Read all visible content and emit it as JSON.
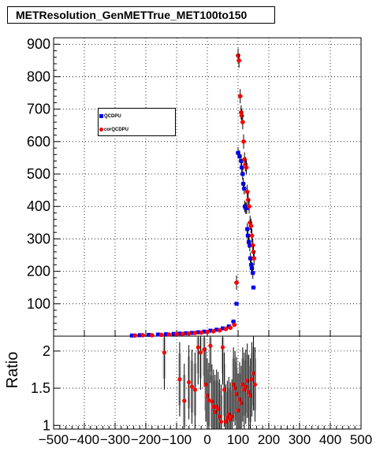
{
  "title": "METResolution_GenMETTrue_MET100to150",
  "legend": {
    "entries": [
      {
        "label": "QCDPU",
        "color": "#0000ff",
        "marker": "square"
      },
      {
        "label": "corQCDPU",
        "color": "#ff0000",
        "marker": "circle"
      }
    ]
  },
  "chart_data": [
    {
      "type": "scatter",
      "panel": "top",
      "xlim": [
        -500,
        500
      ],
      "ylim": [
        0,
        920
      ],
      "yticks": [
        "100",
        "200",
        "300",
        "400",
        "500",
        "600",
        "700",
        "800",
        "900"
      ],
      "grid": true,
      "series": [
        {
          "name": "QCDPU",
          "color": "#0000ff",
          "marker": "square",
          "points": [
            [
              -245,
              2
            ],
            [
              -220,
              3
            ],
            [
              -190,
              4
            ],
            [
              -160,
              5
            ],
            [
              -135,
              6
            ],
            [
              -110,
              7
            ],
            [
              -90,
              8
            ],
            [
              -70,
              9
            ],
            [
              -50,
              10
            ],
            [
              -30,
              12
            ],
            [
              -10,
              14
            ],
            [
              10,
              17
            ],
            [
              30,
              20
            ],
            [
              50,
              24
            ],
            [
              70,
              30
            ],
            [
              85,
              45
            ],
            [
              95,
              100
            ],
            [
              100,
              565
            ],
            [
              105,
              555
            ],
            [
              110,
              540
            ],
            [
              112,
              520
            ],
            [
              115,
              500
            ],
            [
              117,
              470
            ],
            [
              120,
              455
            ],
            [
              122,
              400
            ],
            [
              125,
              395
            ],
            [
              128,
              395
            ],
            [
              130,
              330
            ],
            [
              132,
              310
            ],
            [
              135,
              290
            ],
            [
              138,
              280
            ],
            [
              140,
              240
            ],
            [
              143,
              220
            ],
            [
              145,
              210
            ],
            [
              148,
              195
            ],
            [
              150,
              150
            ]
          ]
        },
        {
          "name": "corQCDPU",
          "color": "#ff0000",
          "marker": "circle",
          "points": [
            [
              -235,
              2
            ],
            [
              -210,
              3
            ],
            [
              -180,
              3
            ],
            [
              -150,
              4
            ],
            [
              -125,
              5
            ],
            [
              -100,
              6
            ],
            [
              -80,
              7
            ],
            [
              -60,
              8
            ],
            [
              -40,
              10
            ],
            [
              -20,
              11
            ],
            [
              0,
              13
            ],
            [
              20,
              15
            ],
            [
              40,
              18
            ],
            [
              60,
              22
            ],
            [
              75,
              26
            ],
            [
              88,
              35
            ],
            [
              95,
              165
            ],
            [
              100,
              865
            ],
            [
              103,
              850
            ],
            [
              107,
              740
            ],
            [
              110,
              690
            ],
            [
              112,
              680
            ],
            [
              115,
              660
            ],
            [
              118,
              600
            ],
            [
              121,
              545
            ],
            [
              124,
              530
            ],
            [
              127,
              520
            ],
            [
              130,
              445
            ],
            [
              133,
              420
            ],
            [
              136,
              400
            ],
            [
              139,
              350
            ],
            [
              142,
              340
            ],
            [
              145,
              310
            ],
            [
              148,
              280
            ],
            [
              150,
              260
            ],
            [
              152,
              240
            ]
          ]
        }
      ]
    },
    {
      "type": "scatter",
      "panel": "bottom",
      "ylabel": "Ratio",
      "xlim": [
        -500,
        500
      ],
      "ylim": [
        0.95,
        2.2
      ],
      "xticks": [
        "−500",
        "−400",
        "−300",
        "−200",
        "−100",
        "0",
        "100",
        "200",
        "300",
        "400",
        "500"
      ],
      "yticks": [
        "1",
        "1.5",
        "2"
      ],
      "grid": true,
      "series": [
        {
          "name": "ratio",
          "color": "#ff0000",
          "points": [
            [
              -140,
              1.98
            ],
            [
              -90,
              1.62
            ],
            [
              -75,
              1.33
            ],
            [
              -60,
              1.58
            ],
            [
              -50,
              1.52
            ],
            [
              -40,
              1.48
            ],
            [
              -30,
              2.05
            ],
            [
              -22,
              1.98
            ],
            [
              -10,
              2.02
            ],
            [
              -5,
              1.55
            ],
            [
              0,
              1.4
            ],
            [
              5,
              1.34
            ],
            [
              10,
              2.07
            ],
            [
              15,
              1.32
            ],
            [
              20,
              1.25
            ],
            [
              25,
              1.18
            ],
            [
              30,
              1.25
            ],
            [
              35,
              1.22
            ],
            [
              40,
              1.12
            ],
            [
              45,
              1.05
            ],
            [
              50,
              2.05
            ],
            [
              55,
              1.48
            ],
            [
              60,
              1.05
            ],
            [
              65,
              1.1
            ],
            [
              70,
              1.15
            ],
            [
              75,
              1.08
            ],
            [
              80,
              1.12
            ],
            [
              85,
              1.55
            ],
            [
              90,
              1.5
            ],
            [
              95,
              1.42
            ],
            [
              100,
              1.2
            ],
            [
              105,
              1.35
            ],
            [
              110,
              1.3
            ],
            [
              115,
              1.55
            ],
            [
              120,
              1.48
            ],
            [
              125,
              1.52
            ],
            [
              130,
              1.6
            ],
            [
              135,
              1.45
            ],
            [
              140,
              1.4
            ],
            [
              145,
              1.62
            ],
            [
              150,
              1.7
            ],
            [
              155,
              1.55
            ]
          ]
        }
      ]
    }
  ]
}
